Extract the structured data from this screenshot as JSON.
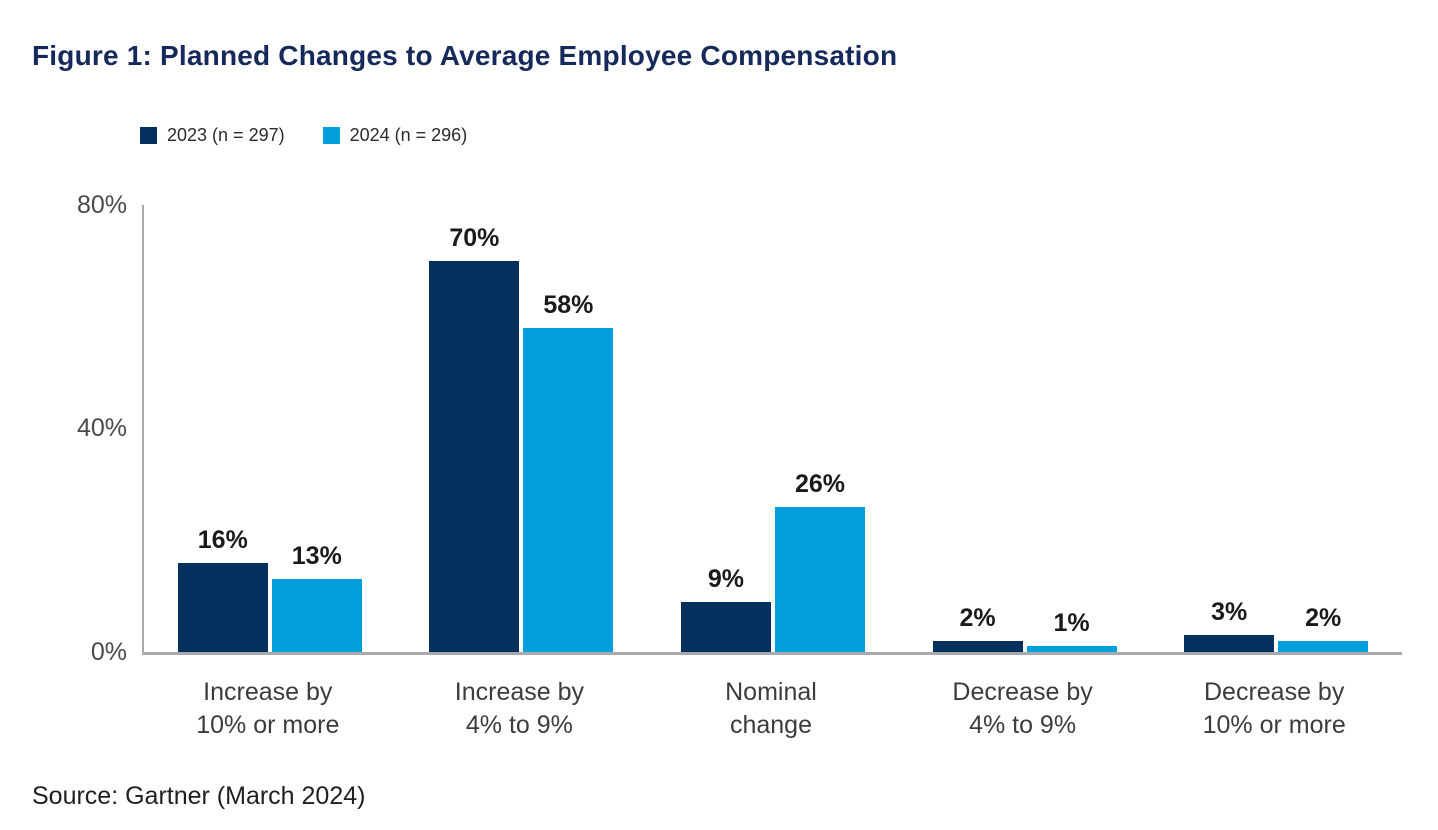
{
  "figure": {
    "title": "Figure 1: Planned Changes to Average Employee Compensation",
    "source": "Source: Gartner (March 2024)"
  },
  "colors": {
    "title_text": "#16295B",
    "series_2023": "#04305E",
    "series_2024": "#009EDB",
    "axis_line": "#A7A9AC",
    "label_text": "#1a1a1a"
  },
  "chart_data": {
    "type": "bar",
    "title": "Figure 1: Planned Changes to Average Employee Compensation",
    "categories": [
      "Increase by\n10% or more",
      "Increase by\n4% to 9%",
      "Nominal\nchange",
      "Decrease by\n4% to 9%",
      "Decrease by\n10% or more"
    ],
    "series": [
      {
        "name": "2023 (n = 297)",
        "color": "#04305E",
        "values": [
          16,
          70,
          9,
          2,
          3
        ]
      },
      {
        "name": "2024 (n = 296)",
        "color": "#009EDB",
        "values": [
          13,
          58,
          26,
          1,
          2
        ]
      }
    ],
    "value_suffix": "%",
    "xlabel": "",
    "ylabel": "",
    "ylim": [
      0,
      80
    ],
    "yticks": [
      "80%",
      "40%",
      "0%"
    ],
    "ytick_values": [
      80,
      40,
      0
    ],
    "grid": false,
    "legend_position": "top-left",
    "data_labels": true,
    "source": "Source: Gartner (March 2024)"
  }
}
